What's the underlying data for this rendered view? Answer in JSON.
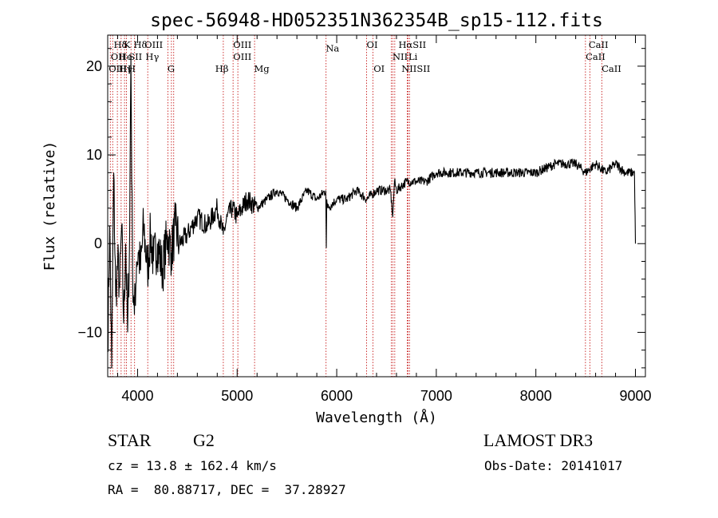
{
  "chart_data": {
    "type": "line",
    "title": "spec-56948-HD052351N362354B_sp15-112.fits",
    "xlabel": "Wavelength (Å)",
    "ylabel": "Flux (relative)",
    "xlim": [
      3700,
      9100
    ],
    "ylim": [
      -15,
      23.5
    ],
    "xticks": [
      4000,
      5000,
      6000,
      7000,
      8000,
      9000
    ],
    "xtick_labels": [
      "4000",
      "5000",
      "6000",
      "7000",
      "8000",
      "9000"
    ],
    "yticks": [
      -10,
      0,
      10,
      20
    ],
    "ytick_labels": [
      "−10",
      "0",
      "10",
      "20"
    ],
    "series": [
      {
        "name": "flux",
        "x": [
          3700,
          3720,
          3740,
          3760,
          3780,
          3800,
          3820,
          3840,
          3860,
          3880,
          3900,
          3920,
          3933,
          3950,
          3968,
          3990,
          4010,
          4030,
          4060,
          4100,
          4130,
          4160,
          4200,
          4250,
          4300,
          4340,
          4380,
          4420,
          4500,
          4600,
          4700,
          4800,
          4860,
          4900,
          4950,
          5000,
          5100,
          5200,
          5300,
          5400,
          5500,
          5600,
          5700,
          5800,
          5890,
          5895,
          5900,
          5910,
          6000,
          6100,
          6200,
          6300,
          6400,
          6500,
          6540,
          6563,
          6580,
          6600,
          6700,
          6800,
          6900,
          7000,
          7200,
          7400,
          7600,
          7800,
          8000,
          8200,
          8400,
          8500,
          8600,
          8700,
          8800,
          8900,
          8950,
          8990,
          9000
        ],
        "y": [
          -12,
          2,
          -14,
          8,
          -6,
          -2,
          -5,
          2,
          -9,
          0,
          -10,
          1,
          21,
          -3,
          -8,
          -2,
          -1,
          -3,
          2,
          -3,
          1,
          -2,
          0,
          -3,
          1,
          -1,
          2,
          0,
          1,
          3,
          2,
          4,
          1,
          3,
          4,
          3,
          5,
          4,
          5,
          6,
          5,
          4,
          6,
          5,
          6,
          -0.5,
          5,
          4,
          5,
          5,
          6,
          5,
          6,
          6,
          6,
          3,
          7,
          6,
          7,
          7,
          7,
          8,
          8,
          8,
          8,
          8,
          8,
          9,
          9,
          8,
          9,
          8,
          9,
          8,
          8,
          8,
          0
        ]
      }
    ],
    "line_markers": [
      {
        "label": "Hδ",
        "x": 3760,
        "row": 1
      },
      {
        "label": "K",
        "x": 3860,
        "row": 1
      },
      {
        "label": "Hδ",
        "x": 3960,
        "row": 1
      },
      {
        "label": "OIII",
        "x": 4070,
        "row": 1
      },
      {
        "label": "OIII",
        "x": 4960,
        "row": 1
      },
      {
        "label": "OI",
        "x": 6300,
        "row": 1
      },
      {
        "label": "HαSII",
        "x": 6620,
        "row": 1
      },
      {
        "label": "CaII",
        "x": 8530,
        "row": 1
      },
      {
        "label": "OII",
        "x": 3730,
        "row": 2
      },
      {
        "label": "He",
        "x": 3810,
        "row": 2
      },
      {
        "label": "SII",
        "x": 3910,
        "row": 2
      },
      {
        "label": "Hγ",
        "x": 4080,
        "row": 2
      },
      {
        "label": "OIII",
        "x": 4960,
        "row": 2
      },
      {
        "label": "NII",
        "x": 6560,
        "row": 2
      },
      {
        "label": "Li",
        "x": 6720,
        "row": 2
      },
      {
        "label": "CaII",
        "x": 8500,
        "row": 2
      },
      {
        "label": "OIII",
        "x": 3710,
        "row": 3
      },
      {
        "label": "Hγ",
        "x": 3810,
        "row": 3
      },
      {
        "label": "H",
        "x": 3900,
        "row": 3
      },
      {
        "label": "G",
        "x": 4300,
        "row": 3
      },
      {
        "label": "Hβ",
        "x": 4780,
        "row": 3
      },
      {
        "label": "Mg",
        "x": 5170,
        "row": 3
      },
      {
        "label": "Na",
        "x": 5890,
        "row": 1.3
      },
      {
        "label": "OI",
        "x": 6370,
        "row": 3
      },
      {
        "label": "NIISII",
        "x": 6650,
        "row": 3
      },
      {
        "label": "CaII",
        "x": 8660,
        "row": 3
      }
    ],
    "line_positions": [
      3726,
      3750,
      3797,
      3835,
      3869,
      3889,
      3934,
      3970,
      4102,
      4304,
      4340,
      4363,
      4861,
      4959,
      5007,
      5175,
      5893,
      6300,
      6363,
      6548,
      6563,
      6583,
      6708,
      6717,
      6731,
      8498,
      8542,
      8662
    ]
  },
  "info": {
    "object_class": "STAR",
    "subclass": "G2",
    "survey": "LAMOST DR3",
    "redshift": "cz = 13.8 ± 162.4 km/s",
    "obs_date": "Obs-Date: 20141017",
    "coords": "RA =  80.88717, DEC =  37.28927"
  }
}
